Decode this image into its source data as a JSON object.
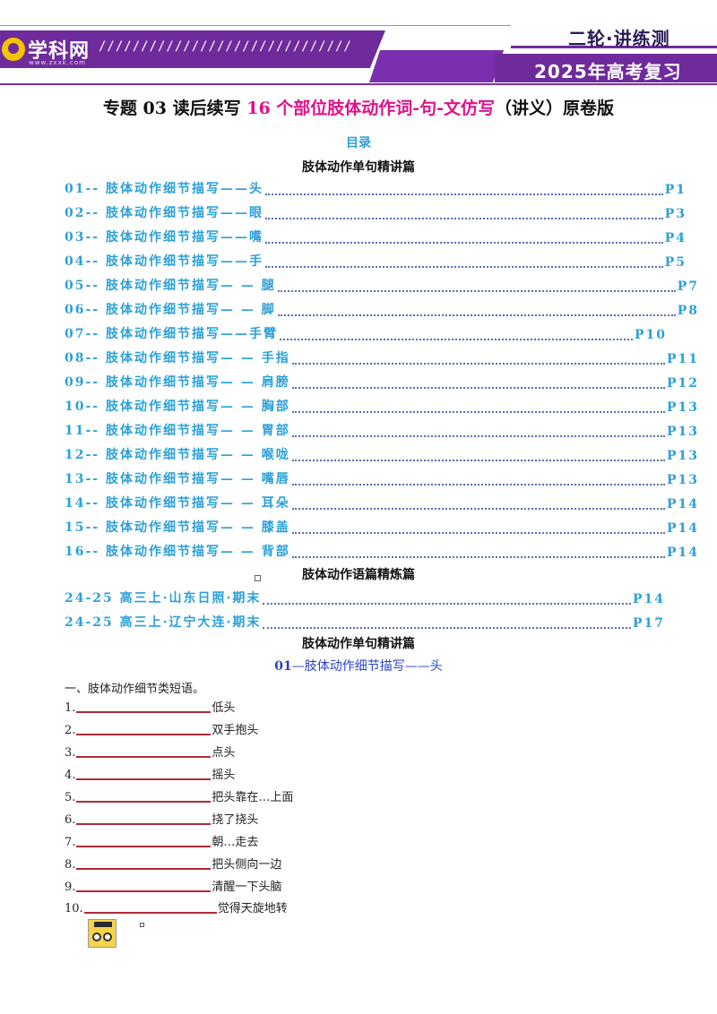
{
  "header": {
    "logo_text": "学科网",
    "logo_sub": "www.zxxk.com",
    "slashes": "//////////////////////////////",
    "label_top": "二轮·讲练测",
    "label_bottom": "2025年高考复习",
    "accent_color": "#6f2b9c"
  },
  "title": {
    "part1": "专题 03  读后续写 ",
    "highlight": "16 个部位肢体动作词-句-文仿写",
    "part2": "（讲义）原卷版"
  },
  "toc_label": "目录",
  "section1_heading": "肢体动作单句精讲篇",
  "toc_part1": [
    {
      "text": "01-- 肢体动作细节描写——头",
      "page": "P1"
    },
    {
      "text": "02-- 肢体动作细节描写——眼",
      "page": "P3"
    },
    {
      "text": "03-- 肢体动作细节描写——嘴",
      "page": "P4"
    },
    {
      "text": "04-- 肢体动作细节描写——手",
      "page": "P5"
    },
    {
      "text": "05-- 肢体动作细节描写— — 腿",
      "page": "P7"
    },
    {
      "text": "06-- 肢体动作细节描写— — 脚",
      "page": "P8"
    },
    {
      "text": "07-- 肢体动作细节描写——手臂",
      "page": "P10"
    },
    {
      "text": "08-- 肢体动作细节描写— — 手指",
      "page": "P11"
    },
    {
      "text": "09-- 肢体动作细节描写— — 肩膀",
      "page": "P12"
    },
    {
      "text": "10-- 肢体动作细节描写— — 胸部",
      "page": "P13"
    },
    {
      "text": "11-- 肢体动作细节描写— — 胃部",
      "page": "P13"
    },
    {
      "text": "12-- 肢体动作细节描写— — 喉咙",
      "page": "P13"
    },
    {
      "text": "13-- 肢体动作细节描写— — 嘴唇",
      "page": "P13"
    },
    {
      "text": "14-- 肢体动作细节描写— — 耳朵",
      "page": "P14"
    },
    {
      "text": "15-- 肢体动作细节描写— — 膝盖",
      "page": "P14"
    },
    {
      "text": "16-- 肢体动作细节描写— — 背部",
      "page": "P14"
    }
  ],
  "section2_heading": "肢体动作语篇精炼篇",
  "toc_part2": [
    {
      "text": "24-25 高三上·山东日照·期末",
      "page": "P14"
    },
    {
      "text": "24-25 高三上·辽宁大连·期末",
      "page": "P17"
    }
  ],
  "section3_heading": "肢体动作单句精讲篇",
  "subheading_num": "01",
  "subheading_text": "—肢体动作细节描写——头",
  "exercise_intro": "一、肢体动作细节类短语。",
  "exercises": [
    {
      "num": "1.",
      "text": "低头"
    },
    {
      "num": "2.",
      "text": "双手抱头"
    },
    {
      "num": "3.",
      "text": "点头"
    },
    {
      "num": "4.",
      "text": "摇头"
    },
    {
      "num": "5.",
      "text": "把头靠在…上面"
    },
    {
      "num": "6.",
      "text": "挠了挠头"
    },
    {
      "num": "7.",
      "text": "朝…走去"
    },
    {
      "num": "8.",
      "text": " 把头侧向一边"
    },
    {
      "num": "9.",
      "text": "清醒一下头脑"
    },
    {
      "num": "10.",
      "text": "觉得天旋地转"
    }
  ]
}
